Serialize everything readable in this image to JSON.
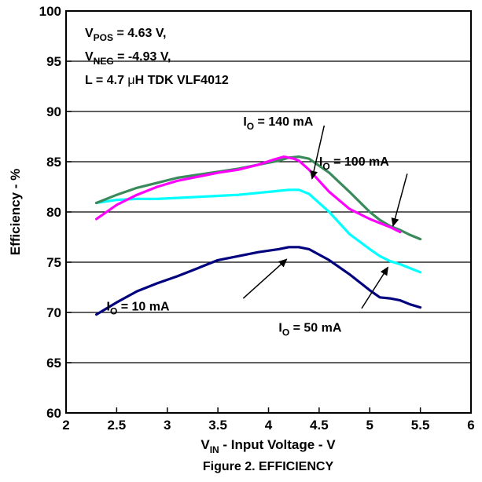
{
  "chart_data": {
    "type": "line",
    "title": "",
    "caption": "Figure 2. EFFICIENCY",
    "xlabel": {
      "main": "V",
      "sub": "IN",
      "rest": " - Input Voltage - V"
    },
    "ylabel": "Efficiency - %",
    "xlim": [
      2,
      6
    ],
    "ylim": [
      60,
      100
    ],
    "xticks": [
      "2",
      "2.5",
      "3",
      "3.5",
      "4",
      "4.5",
      "5",
      "5.5",
      "6"
    ],
    "yticks": [
      "60",
      "65",
      "70",
      "75",
      "80",
      "85",
      "90",
      "95",
      "100"
    ],
    "grid": "horizontal",
    "conditions": [
      {
        "main": "V",
        "sub": "POS",
        "rest": " = 4.63 V,"
      },
      {
        "main": "V",
        "sub": "NEG",
        "rest": " = -4.93 V,"
      },
      {
        "main": "L = 4.7 ",
        "mu": "μ",
        "rest": "H TDK VLF4012"
      }
    ],
    "series": [
      {
        "name": {
          "main": "I",
          "sub": "O",
          "rest": " = 10 mA"
        },
        "color": "#00007f",
        "x": [
          2.3,
          2.5,
          2.7,
          2.9,
          3.1,
          3.3,
          3.5,
          3.7,
          3.9,
          4.1,
          4.2,
          4.3,
          4.4,
          4.6,
          4.8,
          5.0,
          5.1,
          5.2,
          5.3,
          5.4,
          5.5
        ],
        "y": [
          69.8,
          71.0,
          72.1,
          72.9,
          73.6,
          74.4,
          75.2,
          75.6,
          76.0,
          76.3,
          76.5,
          76.5,
          76.3,
          75.2,
          73.8,
          72.2,
          71.5,
          71.4,
          71.2,
          70.8,
          70.5
        ]
      },
      {
        "name": {
          "main": "I",
          "sub": "O",
          "rest": " = 50 mA"
        },
        "color": "#00ffff",
        "x": [
          2.3,
          2.5,
          2.7,
          2.9,
          3.1,
          3.3,
          3.5,
          3.7,
          3.9,
          4.1,
          4.2,
          4.3,
          4.4,
          4.6,
          4.8,
          5.0,
          5.1,
          5.2,
          5.3,
          5.4,
          5.5
        ],
        "y": [
          80.9,
          81.2,
          81.3,
          81.3,
          81.4,
          81.5,
          81.6,
          81.7,
          81.9,
          82.1,
          82.2,
          82.2,
          81.8,
          80.0,
          77.8,
          76.3,
          75.6,
          75.1,
          74.8,
          74.4,
          74.0
        ]
      },
      {
        "name": {
          "main": "I",
          "sub": "O",
          "rest": " = 100 mA"
        },
        "color": "#3a8a5c",
        "x": [
          2.3,
          2.5,
          2.7,
          2.9,
          3.1,
          3.3,
          3.5,
          3.7,
          3.9,
          4.1,
          4.2,
          4.3,
          4.4,
          4.6,
          4.8,
          5.0,
          5.1,
          5.2,
          5.3,
          5.4,
          5.5
        ],
        "y": [
          80.9,
          81.7,
          82.4,
          82.9,
          83.4,
          83.7,
          84.0,
          84.3,
          84.7,
          85.1,
          85.4,
          85.5,
          85.3,
          83.9,
          82.0,
          80.0,
          79.2,
          78.6,
          78.2,
          77.7,
          77.3
        ]
      },
      {
        "name": {
          "main": "I",
          "sub": "O",
          "rest": " = 140 mA"
        },
        "color": "#ff00ff",
        "x": [
          2.3,
          2.5,
          2.7,
          2.9,
          3.1,
          3.3,
          3.5,
          3.7,
          3.9,
          4.05,
          4.15,
          4.25,
          4.3,
          4.4,
          4.6,
          4.8,
          5.0,
          5.1,
          5.2,
          5.3
        ],
        "y": [
          79.3,
          80.7,
          81.7,
          82.5,
          83.1,
          83.5,
          83.9,
          84.2,
          84.7,
          85.2,
          85.5,
          85.3,
          85.1,
          84.2,
          82.0,
          80.3,
          79.3,
          78.9,
          78.5,
          78.0
        ]
      }
    ],
    "annotations": [
      {
        "series": 3,
        "label_x": 3.75,
        "label_y": 88.6,
        "arrow_from": [
          4.55,
          88.6
        ],
        "arrow_to": [
          4.43,
          83.3
        ]
      },
      {
        "series": 2,
        "label_x": 4.5,
        "label_y": 84.6,
        "arrow_from": [
          5.37,
          83.8
        ],
        "arrow_to": [
          5.23,
          78.6
        ]
      },
      {
        "series": 0,
        "label_x": 2.4,
        "label_y": 70.2,
        "arrow_from": [
          3.75,
          71.4
        ],
        "arrow_to": [
          4.18,
          75.3
        ]
      },
      {
        "series": 1,
        "label_x": 4.1,
        "label_y": 68.1,
        "arrow_from": [
          4.92,
          70.4
        ],
        "arrow_to": [
          5.18,
          74.5
        ]
      }
    ]
  }
}
